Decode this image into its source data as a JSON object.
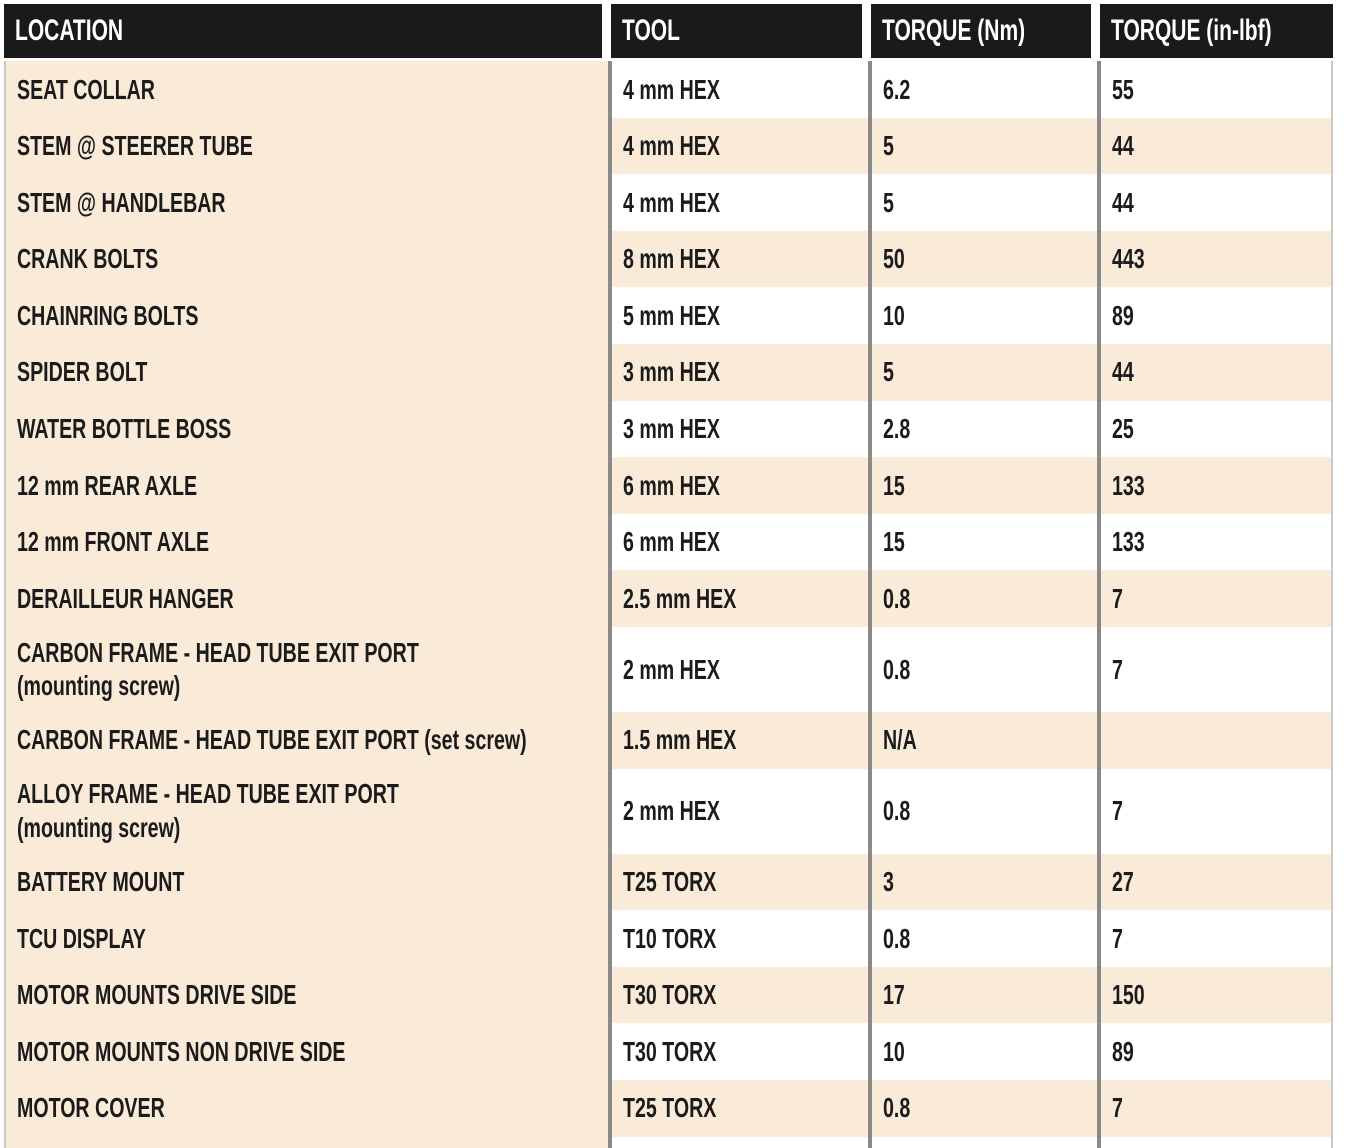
{
  "colors": {
    "cream": "#FAEBD8",
    "header_bg": "#1A1A1A",
    "col_border": "#8A8A8A",
    "edge_border": "#C9C9C9",
    "text": "#1B1B1B"
  },
  "table": {
    "headers": {
      "location": "LOCATION",
      "tool": "TOOL",
      "torque_nm": "TORQUE (Nm)",
      "torque_inlbf": "TORQUE (in-lbf)"
    },
    "rows": [
      {
        "location": "SEAT COLLAR",
        "tool": "4 mm HEX",
        "nm": "6.2",
        "inlbf": "55"
      },
      {
        "location": "STEM @ STEERER TUBE",
        "tool": "4 mm HEX",
        "nm": "5",
        "inlbf": "44"
      },
      {
        "location": "STEM @ HANDLEBAR",
        "tool": "4 mm HEX",
        "nm": "5",
        "inlbf": "44"
      },
      {
        "location": "CRANK BOLTS",
        "tool": "8 mm HEX",
        "nm": "50",
        "inlbf": "443"
      },
      {
        "location": "CHAINRING BOLTS",
        "tool": "5 mm HEX",
        "nm": "10",
        "inlbf": "89"
      },
      {
        "location": "SPIDER BOLT",
        "tool": "3 mm HEX",
        "nm": "5",
        "inlbf": "44"
      },
      {
        "location": "WATER BOTTLE BOSS",
        "tool": "3 mm HEX",
        "nm": "2.8",
        "inlbf": "25"
      },
      {
        "location": "12 mm REAR AXLE",
        "tool": "6 mm HEX",
        "nm": "15",
        "inlbf": "133"
      },
      {
        "location": "12 mm FRONT AXLE",
        "tool": "6 mm HEX",
        "nm": "15",
        "inlbf": "133"
      },
      {
        "location": "DERAILLEUR HANGER",
        "tool": "2.5 mm HEX",
        "nm": "0.8",
        "inlbf": "7"
      },
      {
        "location": "CARBON FRAME - HEAD TUBE EXIT PORT (mounting screw)",
        "tool": "2 mm HEX",
        "nm": "0.8",
        "inlbf": "7"
      },
      {
        "location": "CARBON FRAME - HEAD TUBE EXIT PORT (set screw)",
        "tool": "1.5 mm HEX",
        "nm": "N/A",
        "inlbf": ""
      },
      {
        "location": "ALLOY FRAME - HEAD TUBE EXIT PORT  (mounting screw)",
        "tool": "2 mm HEX",
        "nm": "0.8",
        "inlbf": "7"
      },
      {
        "location": "BATTERY MOUNT",
        "tool": "T25 TORX",
        "nm": "3",
        "inlbf": "27"
      },
      {
        "location": "TCU DISPLAY",
        "tool": "T10 TORX",
        "nm": "0.8",
        "inlbf": "7"
      },
      {
        "location": "MOTOR MOUNTS DRIVE SIDE",
        "tool": "T30 TORX",
        "nm": "17",
        "inlbf": "150"
      },
      {
        "location": "MOTOR MOUNTS NON DRIVE SIDE",
        "tool": "T30 TORX",
        "nm": "10",
        "inlbf": "89"
      },
      {
        "location": "MOTOR COVER",
        "tool": "T25 TORX",
        "nm": "0.8",
        "inlbf": "7"
      }
    ]
  }
}
